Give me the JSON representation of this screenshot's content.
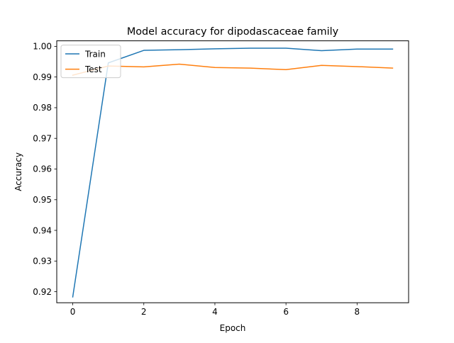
{
  "chart_data": {
    "type": "line",
    "title": "Model accuracy for dipodascaceae family",
    "xlabel": "Epoch",
    "ylabel": "Accuracy",
    "x": [
      0,
      1,
      2,
      3,
      4,
      5,
      6,
      7,
      8,
      9
    ],
    "xlim": [
      -0.45,
      9.45
    ],
    "ylim": [
      0.9164,
      1.0018
    ],
    "xticks": [
      0,
      2,
      4,
      6,
      8
    ],
    "xtick_labels": [
      "0",
      "2",
      "4",
      "6",
      "8"
    ],
    "yticks": [
      0.92,
      0.93,
      0.94,
      0.95,
      0.96,
      0.97,
      0.98,
      0.99,
      1.0
    ],
    "ytick_labels": [
      "0.92",
      "0.93",
      "0.94",
      "0.95",
      "0.96",
      "0.97",
      "0.98",
      "0.99",
      "1.00"
    ],
    "grid": false,
    "legend_position": "top-left",
    "series": [
      {
        "name": "Train",
        "color": "#1f77b4",
        "values": [
          0.9183,
          0.9946,
          0.9987,
          0.9989,
          0.9992,
          0.9994,
          0.9994,
          0.9986,
          0.9991,
          0.9991
        ]
      },
      {
        "name": "Test",
        "color": "#ff7f0e",
        "values": [
          0.9906,
          0.9936,
          0.9933,
          0.9942,
          0.9931,
          0.9929,
          0.9924,
          0.9938,
          0.9934,
          0.9929
        ]
      }
    ]
  }
}
